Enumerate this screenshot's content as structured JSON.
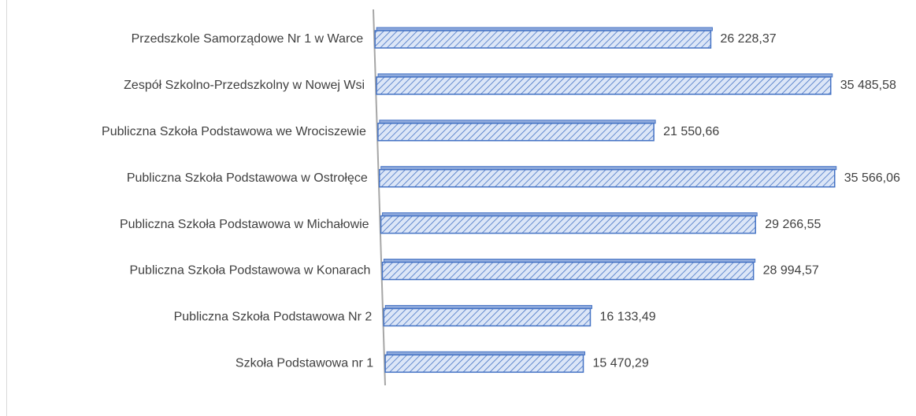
{
  "chart_data": {
    "type": "bar",
    "orientation": "horizontal",
    "categories": [
      "Przedszkole Samorządowe  Nr 1 w Warce",
      "Zespół Szkolno-Przedszkolny w Nowej Wsi",
      "Publiczna Szkoła Podstawowa we Wrociszewie",
      "Publiczna Szkoła Podstawowa w Ostrołęce",
      "Publiczna Szkoła Podstawowa w Michałowie",
      "Publiczna Szkoła Podstawowa w Konarach",
      "Publiczna Szkoła Podstawowa Nr 2",
      "Szkoła Podstawowa nr 1"
    ],
    "values": [
      26228.37,
      35485.58,
      21550.66,
      35566.06,
      29266.55,
      28994.57,
      16133.49,
      15470.29
    ],
    "value_labels": [
      "26 228,37",
      "35 485,58",
      "21 550,66",
      "35 566,06",
      "29 266,55",
      "28 994,57",
      "16 133,49",
      "15 470,29"
    ],
    "color": "#4472c4"
  }
}
